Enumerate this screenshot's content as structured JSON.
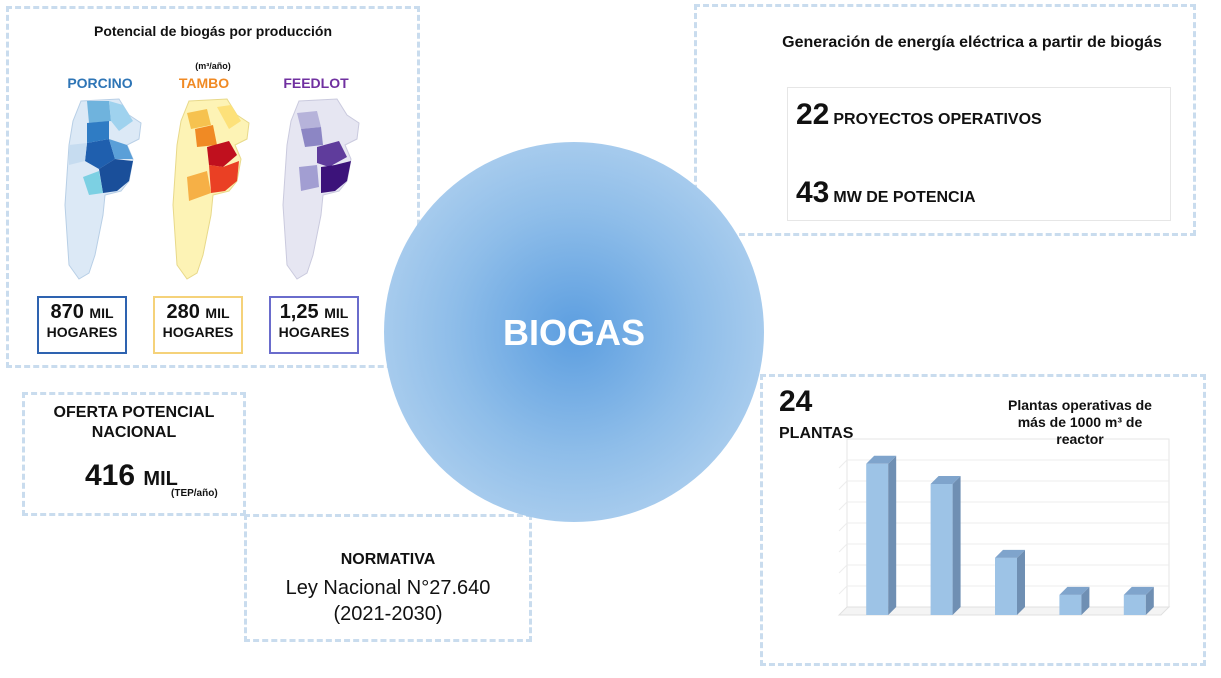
{
  "potencial": {
    "title": "Potencial de biogás por producción",
    "unit": "(m³/año)",
    "maps": [
      {
        "label": "PORCINO",
        "label_color": "#2e75b6",
        "value": "870",
        "value_suffix": "MIL",
        "unit": "HOGARES",
        "border_color": "#2e63b0"
      },
      {
        "label": "TAMBO",
        "label_color": "#f08a24",
        "value": "280",
        "value_suffix": "MIL",
        "unit": "HOGARES",
        "border_color": "#f5d27a"
      },
      {
        "label": "FEEDLOT",
        "label_color": "#7030a0",
        "value": "1,25",
        "value_suffix": "MIL",
        "unit": "HOGARES",
        "border_color": "#6a6ccc"
      }
    ]
  },
  "generacion": {
    "title": "Generación de energía eléctrica a partir de biogás",
    "proyectos_num": "22",
    "proyectos_label": "PROYECTOS OPERATIVOS",
    "potencia_num": "43",
    "potencia_label": "MW DE POTENCIA"
  },
  "oferta": {
    "title": "OFERTA POTENCIAL NACIONAL",
    "value": "416",
    "value_suffix": "MIL",
    "unit": "(TEP/año)"
  },
  "normativa": {
    "title": "NORMATIVA",
    "law": "Ley Nacional N°27.640",
    "period": "(2021-2030)"
  },
  "center": {
    "label": "BIOGAS"
  },
  "plantas": {
    "num": "24",
    "label": "PLANTAS",
    "chart_title": "Plantas operativas de más de 1000 m³ de reactor"
  },
  "chart_data": {
    "type": "bar",
    "title": "Plantas operativas de más de 1000 m³ de reactor",
    "categories": [
      "",
      "",
      "",
      "",
      ""
    ],
    "values": [
      9,
      7.8,
      3.4,
      1.2,
      1.2
    ],
    "ylim": [
      0,
      10
    ],
    "grid": true,
    "color": "#9dc3e6"
  }
}
